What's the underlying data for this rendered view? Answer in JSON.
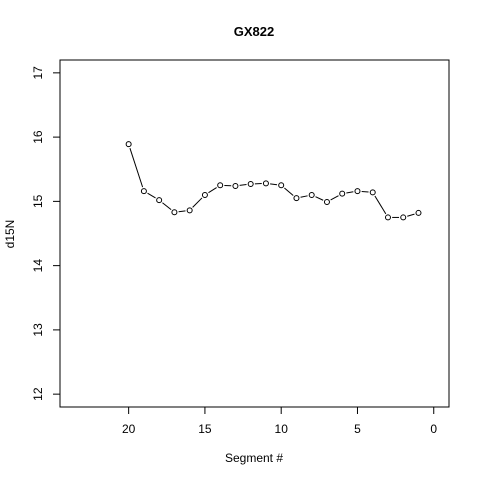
{
  "chart_data": {
    "type": "line",
    "title": "GX822",
    "xlabel": "Segment #",
    "ylabel": "d15N",
    "xlim": [
      24.5,
      -1
    ],
    "ylim": [
      11.8,
      17.2
    ],
    "x_axis_reversed": true,
    "x_ticks": [
      20,
      15,
      10,
      5,
      0
    ],
    "y_ticks": [
      12,
      13,
      14,
      15,
      16,
      17
    ],
    "x_tick_labels": [
      "20",
      "15",
      "10",
      "5",
      "0"
    ],
    "y_tick_labels": [
      "12",
      "13",
      "14",
      "15",
      "16",
      "17"
    ],
    "grid": false,
    "line_style": "b",
    "marker": "open-circle",
    "series": [
      {
        "x": [
          20,
          19,
          18,
          17,
          16,
          15,
          14,
          13,
          12,
          11,
          10,
          9,
          8,
          7,
          6,
          5,
          4,
          3,
          2,
          1
        ],
        "y": [
          15.89,
          15.16,
          15.02,
          14.83,
          14.86,
          15.1,
          15.25,
          15.24,
          15.27,
          15.28,
          15.25,
          15.05,
          15.1,
          14.99,
          15.12,
          15.16,
          15.14,
          14.75,
          14.75,
          14.82
        ]
      }
    ]
  }
}
